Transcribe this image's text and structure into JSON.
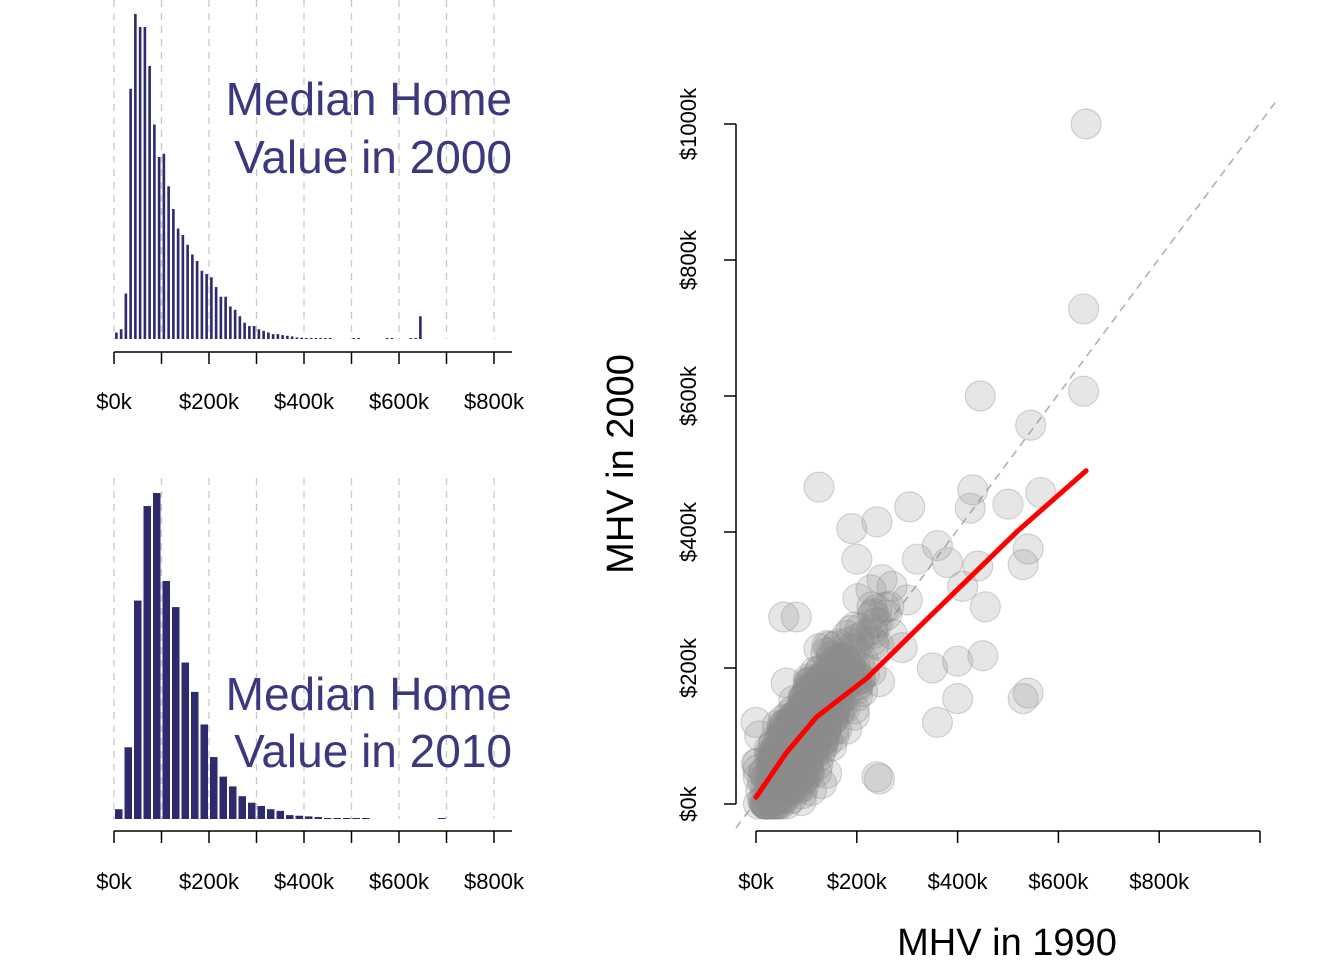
{
  "colors": {
    "hist_bar": "#2e2a6e",
    "hist_title": "#3b3880",
    "scatter_point": "#8c8c8c",
    "trend_line": "#ff0000",
    "reference_line": "#b0b0b0",
    "gridline": "#c8c8c8"
  },
  "chart_data": [
    {
      "type": "bar",
      "subtype": "histogram",
      "title_lines": [
        "Median Home",
        "Value in 2000"
      ],
      "xlim": [
        0,
        800000
      ],
      "x_ticks": [
        0,
        100000,
        200000,
        300000,
        400000,
        500000,
        600000,
        700000,
        800000
      ],
      "x_tick_labels": [
        "$0k",
        "$200k",
        "$400k",
        "$600k",
        "$800k"
      ],
      "x_tick_label_values": [
        0,
        200000,
        400000,
        600000,
        800000
      ],
      "grid": "vertical dashed",
      "bin_width": 10000,
      "bin_start": 0,
      "values": [
        0.02,
        0.03,
        0.14,
        0.77,
        1.0,
        0.96,
        0.96,
        0.84,
        0.66,
        0.56,
        0.57,
        0.47,
        0.4,
        0.34,
        0.32,
        0.29,
        0.26,
        0.24,
        0.21,
        0.2,
        0.19,
        0.16,
        0.13,
        0.13,
        0.1,
        0.09,
        0.07,
        0.05,
        0.04,
        0.04,
        0.03,
        0.025,
        0.02,
        0.015,
        0.015,
        0.012,
        0.01,
        0.008,
        0.005,
        0.004,
        0.003,
        0.003,
        0.002,
        0.002,
        0.001,
        0.001,
        0,
        0,
        0,
        0,
        0.003,
        0.003,
        0,
        0,
        0,
        0,
        0,
        0.001,
        0.001,
        0,
        0,
        0,
        0.001,
        0.001,
        0.07
      ]
    },
    {
      "type": "bar",
      "subtype": "histogram",
      "title_lines": [
        "Median Home",
        "Value in 2010"
      ],
      "xlim": [
        0,
        800000
      ],
      "x_ticks": [
        0,
        100000,
        200000,
        300000,
        400000,
        500000,
        600000,
        700000,
        800000
      ],
      "x_tick_labels": [
        "$0k",
        "$200k",
        "$400k",
        "$600k",
        "$800k"
      ],
      "x_tick_label_values": [
        0,
        200000,
        400000,
        600000,
        800000
      ],
      "grid": "vertical dashed",
      "bin_width": 20000,
      "bin_start": 0,
      "values": [
        0.03,
        0.22,
        0.67,
        0.96,
        1.0,
        0.73,
        0.65,
        0.48,
        0.39,
        0.29,
        0.19,
        0.13,
        0.1,
        0.07,
        0.05,
        0.04,
        0.03,
        0.025,
        0.012,
        0.01,
        0.008,
        0.006,
        0.003,
        0.003,
        0.002,
        0.001,
        0.001,
        0,
        0,
        0,
        0,
        0,
        0,
        0,
        0.001
      ]
    },
    {
      "type": "scatter",
      "xlabel": "MHV in 1990",
      "ylabel": "MHV in 2000",
      "xlim": [
        0,
        1000000
      ],
      "ylim": [
        0,
        1000000
      ],
      "x_tick_values": [
        0,
        200000,
        400000,
        600000,
        800000
      ],
      "x_tick_labels": [
        "$0k",
        "$200k",
        "$400k",
        "$600k",
        "$800k"
      ],
      "x_axis_end": 1000000,
      "y_tick_values": [
        0,
        200000,
        400000,
        600000,
        800000,
        1000000
      ],
      "y_tick_labels": [
        "$0k",
        "$200k",
        "$400k",
        "$600k",
        "$800k",
        "$1000k"
      ],
      "reference_line": "y = x",
      "outlier_points": [
        [
          655000,
          1000000
        ],
        [
          650000,
          728000
        ],
        [
          650000,
          607000
        ],
        [
          445000,
          600000
        ],
        [
          545000,
          557000
        ],
        [
          125000,
          466000
        ],
        [
          430000,
          462000
        ],
        [
          565000,
          458000
        ],
        [
          500000,
          441000
        ],
        [
          305000,
          437000
        ],
        [
          425000,
          435000
        ],
        [
          190000,
          405000
        ],
        [
          240000,
          415000
        ],
        [
          540000,
          375000
        ],
        [
          530000,
          352000
        ],
        [
          455000,
          290000
        ],
        [
          450000,
          218000
        ],
        [
          400000,
          210000
        ],
        [
          400000,
          155000
        ],
        [
          530000,
          155000
        ],
        [
          540000,
          163000
        ],
        [
          360000,
          120000
        ],
        [
          0,
          120000
        ],
        [
          55000,
          275000
        ],
        [
          80000,
          275000
        ],
        [
          230000,
          290000
        ],
        [
          270000,
          320000
        ],
        [
          320000,
          360000
        ],
        [
          380000,
          355000
        ],
        [
          440000,
          350000
        ],
        [
          410000,
          320000
        ],
        [
          205000,
          210000
        ],
        [
          350000,
          200000
        ],
        [
          245000,
          180000
        ],
        [
          195000,
          140000
        ],
        [
          180000,
          110000
        ],
        [
          150000,
          85000
        ],
        [
          240000,
          40000
        ],
        [
          245000,
          37000
        ],
        [
          130000,
          30000
        ],
        [
          90000,
          5000
        ],
        [
          110000,
          20000
        ],
        [
          140000,
          45000
        ],
        [
          100000,
          80000
        ],
        [
          60000,
          178000
        ],
        [
          270000,
          250000
        ],
        [
          290000,
          230000
        ],
        [
          160000,
          190000
        ],
        [
          200000,
          360000
        ],
        [
          300000,
          300000
        ],
        [
          250000,
          330000
        ],
        [
          360000,
          380000
        ]
      ],
      "cloud_center": [
        120000,
        130000
      ],
      "cloud_point_count": 900,
      "trend_line": {
        "x": [
          0,
          60000,
          120000,
          220000,
          320000,
          420000,
          520000,
          655000
        ],
        "y": [
          10000,
          75000,
          128000,
          185000,
          258000,
          330000,
          402000,
          490000
        ]
      }
    }
  ]
}
